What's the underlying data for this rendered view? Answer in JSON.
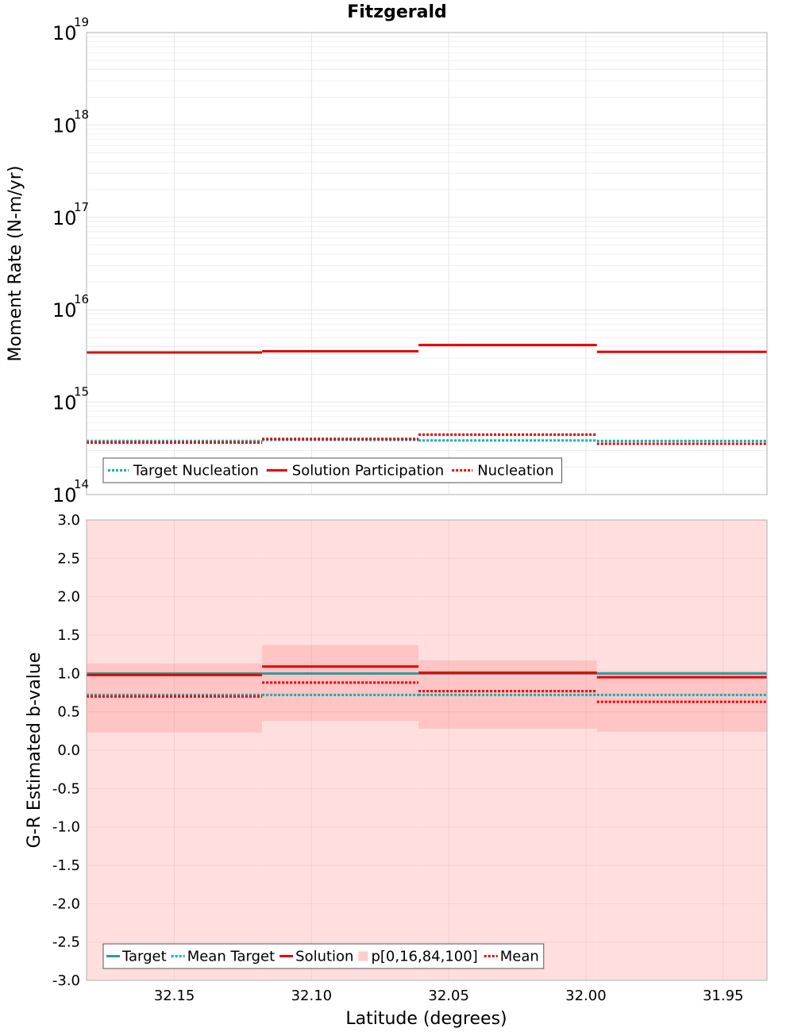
{
  "chart_data": [
    {
      "type": "line",
      "title": "Fitzgerald",
      "xlabel": "",
      "ylabel": "Moment Rate (N-m/yr)",
      "yscale": "log",
      "ylim": [
        100000000000000.0,
        1e+19
      ],
      "xlim": [
        32.182,
        31.934
      ],
      "x_reversed": true,
      "grid": true,
      "y_ticks": [
        {
          "base": "10",
          "exp": "14",
          "value": 100000000000000.0
        },
        {
          "base": "10",
          "exp": "15",
          "value": 1000000000000000.0
        },
        {
          "base": "10",
          "exp": "16",
          "value": 1e+16
        },
        {
          "base": "10",
          "exp": "17",
          "value": 1e+17
        },
        {
          "base": "10",
          "exp": "18",
          "value": 1e+18
        },
        {
          "base": "10",
          "exp": "19",
          "value": 1e+19
        }
      ],
      "bins": [
        [
          32.182,
          32.118
        ],
        [
          32.118,
          32.061
        ],
        [
          32.061,
          31.996
        ],
        [
          31.996,
          31.934
        ]
      ],
      "series": [
        {
          "name": "Target Nucleation",
          "color": "#00b4b4",
          "style": "dotted",
          "values": [
            380000000000000.0,
            390000000000000.0,
            385000000000000.0,
            380000000000000.0
          ]
        },
        {
          "name": "Solution Participation",
          "color": "#e60000",
          "style": "solid",
          "values": [
            3450000000000000.0,
            3550000000000000.0,
            4150000000000000.0,
            3500000000000000.0
          ]
        },
        {
          "name": "Nucleation",
          "color": "#e60000",
          "style": "dotted",
          "values": [
            365000000000000.0,
            400000000000000.0,
            445000000000000.0,
            355000000000000.0
          ]
        }
      ],
      "legend": [
        "Target Nucleation",
        "Solution Participation",
        "Nucleation"
      ],
      "legend_position": "bottom-left"
    },
    {
      "type": "line",
      "title": "",
      "xlabel": "Latitude (degrees)",
      "ylabel": "G-R Estimated b-value",
      "ylim": [
        -3.0,
        3.0
      ],
      "xlim": [
        32.182,
        31.934
      ],
      "x_reversed": true,
      "grid": true,
      "x_ticks": [
        {
          "label": "32.15",
          "value": 32.15
        },
        {
          "label": "32.10",
          "value": 32.1
        },
        {
          "label": "32.05",
          "value": 32.05
        },
        {
          "label": "32.00",
          "value": 32.0
        },
        {
          "label": "31.95",
          "value": 31.95
        }
      ],
      "y_ticks": [
        {
          "label": "3.0",
          "value": 3.0
        },
        {
          "label": "2.5",
          "value": 2.5
        },
        {
          "label": "2.0",
          "value": 2.0
        },
        {
          "label": "1.5",
          "value": 1.5
        },
        {
          "label": "1.0",
          "value": 1.0
        },
        {
          "label": "0.5",
          "value": 0.5
        },
        {
          "label": "0.0",
          "value": 0.0
        },
        {
          "label": "-0.5",
          "value": -0.5
        },
        {
          "label": "-1.0",
          "value": -1.0
        },
        {
          "label": "-1.5",
          "value": -1.5
        },
        {
          "label": "-2.0",
          "value": -2.0
        },
        {
          "label": "-2.5",
          "value": -2.5
        },
        {
          "label": "-3.0",
          "value": -3.0
        }
      ],
      "bins": [
        [
          32.182,
          32.118
        ],
        [
          32.118,
          32.061
        ],
        [
          32.061,
          31.996
        ],
        [
          31.996,
          31.934
        ]
      ],
      "band_outer": {
        "name": "p[0,16,84,100]",
        "lower": [
          -3.0,
          -3.0,
          -3.0,
          -3.0
        ],
        "upper": [
          3.0,
          3.0,
          3.0,
          3.0
        ]
      },
      "band_inner": {
        "lower": [
          0.23,
          0.38,
          0.28,
          0.24
        ],
        "upper": [
          1.13,
          1.37,
          1.17,
          1.03
        ]
      },
      "series": [
        {
          "name": "Target",
          "color": "#2a9d9d",
          "style": "solid",
          "values": [
            1.0,
            1.0,
            1.0,
            1.0
          ]
        },
        {
          "name": "Mean Target",
          "color": "#00b4b4",
          "style": "dotted",
          "values": [
            0.72,
            0.72,
            0.72,
            0.72
          ]
        },
        {
          "name": "Solution",
          "color": "#e60000",
          "style": "solid",
          "values": [
            0.98,
            1.09,
            1.01,
            0.95
          ]
        },
        {
          "name": "Mean",
          "color": "#e60000",
          "style": "dotted",
          "values": [
            0.7,
            0.88,
            0.77,
            0.63
          ]
        }
      ],
      "legend": [
        "Target",
        "Mean Target",
        "Solution",
        "p[0,16,84,100]",
        "Mean"
      ],
      "legend_position": "bottom-left"
    }
  ]
}
